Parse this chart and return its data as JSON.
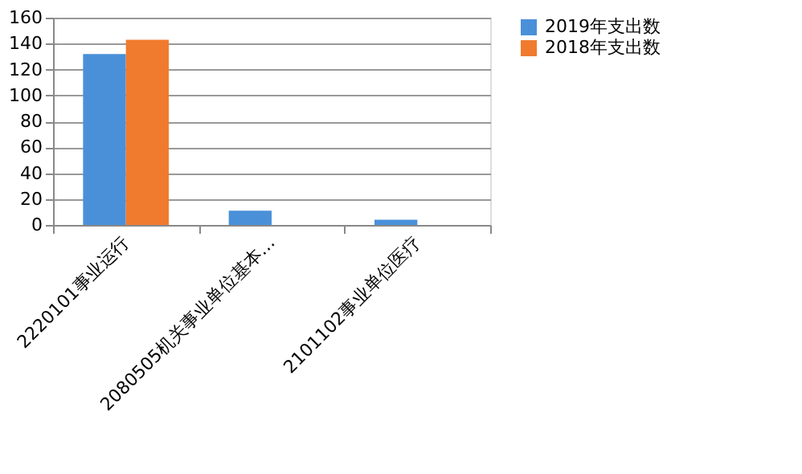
{
  "chart_data": {
    "type": "bar",
    "categories": [
      "2220101事业运行",
      "2080505机关事业单位基本…",
      "2101102事业单位医疗"
    ],
    "series": [
      {
        "name": "2019年支出数",
        "color": "#4a90d9",
        "values": [
          132,
          11,
          4
        ]
      },
      {
        "name": "2018年支出数",
        "color": "#f07b2e",
        "values": [
          143,
          null,
          null
        ]
      }
    ],
    "ylim": [
      0,
      160
    ],
    "yticks": [
      0,
      20,
      40,
      60,
      80,
      100,
      120,
      140,
      160
    ],
    "grid": "y",
    "legend": "right"
  }
}
